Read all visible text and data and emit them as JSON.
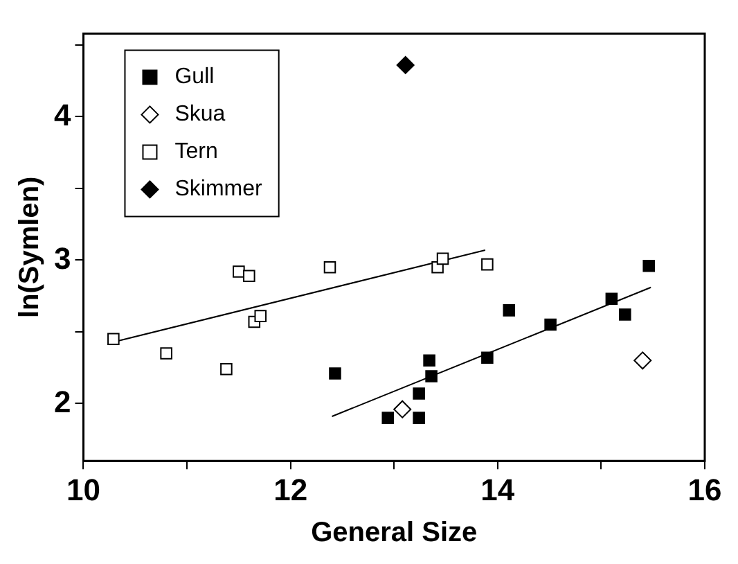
{
  "chart_data": {
    "type": "scatter",
    "xlabel": "General Size",
    "ylabel": "ln(Symlen)",
    "xlim": [
      10,
      16
    ],
    "xticks": [
      10,
      {
        "value": 11,
        "label": null
      },
      12,
      {
        "value": 13,
        "label": null
      },
      14,
      {
        "value": 15,
        "label": null
      },
      16
    ],
    "ylim": [
      1.6,
      4.58
    ],
    "yticks": [
      2,
      {
        "value": 2.5,
        "label": null
      },
      3,
      {
        "value": 3.5,
        "label": null
      },
      4,
      {
        "value": 4.5,
        "label": null
      }
    ],
    "grid": false,
    "legend": "top left",
    "series": [
      {
        "name": "Gull",
        "marker": "square",
        "color": "#000000",
        "x": [
          12.94,
          13.24,
          13.24,
          13.34,
          13.36,
          12.43,
          13.9,
          14.11,
          14.51,
          15.1,
          15.23,
          15.46
        ],
        "values": [
          1.9,
          1.9,
          2.07,
          2.3,
          2.19,
          2.21,
          2.32,
          2.65,
          2.55,
          2.73,
          2.62,
          2.96
        ]
      },
      {
        "name": "Skua",
        "marker": "diamond",
        "color": "#ffffff",
        "x": [
          13.08,
          15.4
        ],
        "values": [
          1.96,
          2.3
        ]
      },
      {
        "name": "Tern",
        "marker": "square",
        "color": "#ffffff",
        "x": [
          10.29,
          10.8,
          11.38,
          11.5,
          11.6,
          11.65,
          11.71,
          12.38,
          13.42,
          13.47,
          13.9
        ],
        "values": [
          2.45,
          2.35,
          2.24,
          2.92,
          2.89,
          2.57,
          2.61,
          2.95,
          2.95,
          3.01,
          2.97
        ]
      },
      {
        "name": "Skimmer",
        "marker": "diamond",
        "color": "#000000",
        "x": [
          13.11
        ],
        "values": [
          4.36
        ]
      },
      {
        "type": "line",
        "marker": "none",
        "color": "#000000",
        "x": [
          10.24,
          13.88
        ],
        "values": [
          2.42,
          3.07
        ]
      },
      {
        "type": "line",
        "marker": "none",
        "color": "#000000",
        "x": [
          12.4,
          15.48
        ],
        "values": [
          1.91,
          2.81
        ]
      }
    ]
  }
}
